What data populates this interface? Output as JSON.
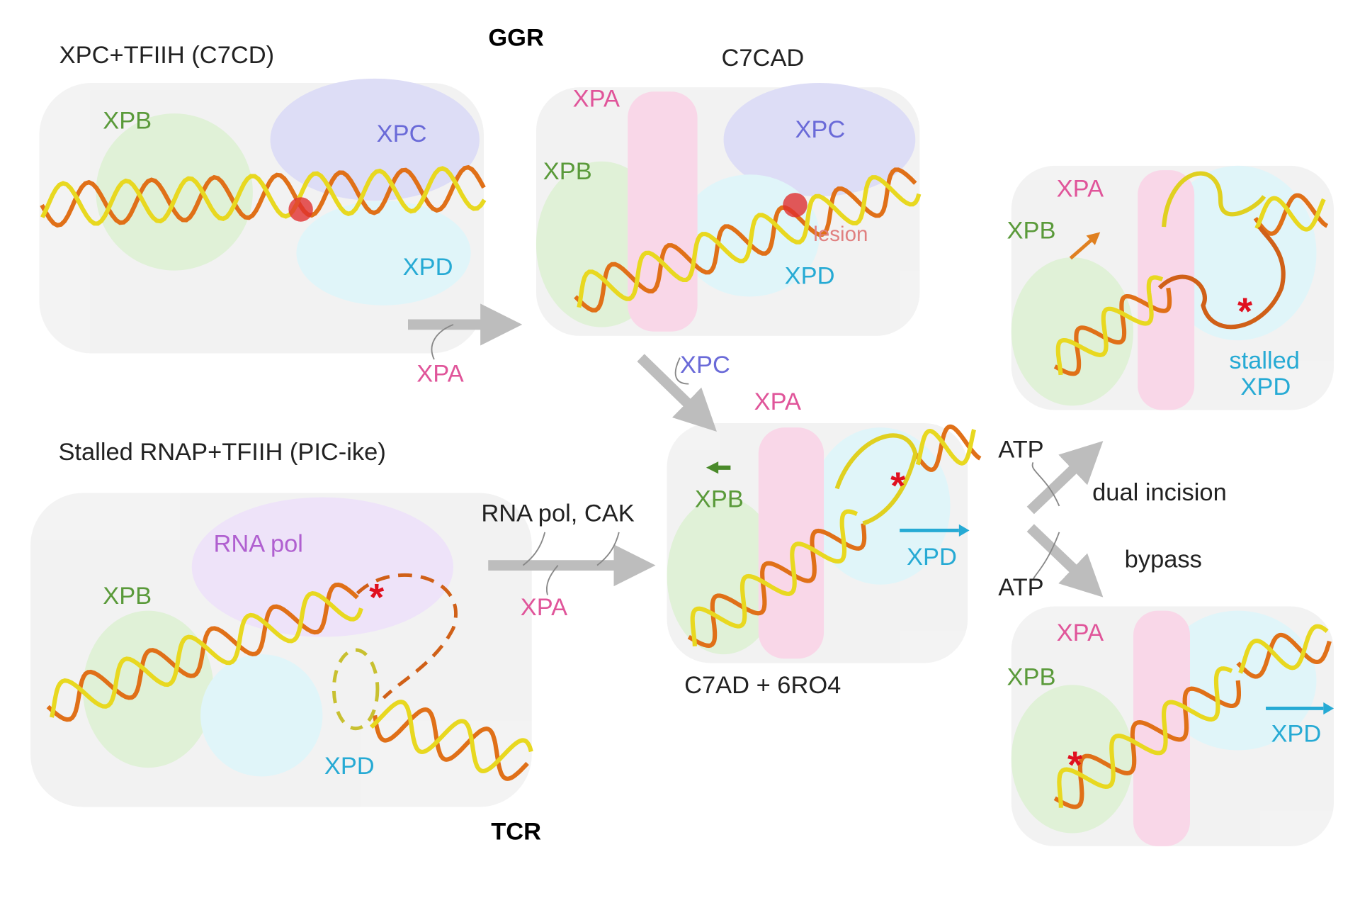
{
  "headings": {
    "ggr": "GGR",
    "tcr": "TCR"
  },
  "panels": {
    "c7cd": {
      "title": "XPC+TFIIH (C7CD)",
      "labels": [
        "XPB",
        "XPC",
        "XPD"
      ]
    },
    "c7cad": {
      "title": "C7CAD",
      "labels": [
        "XPA",
        "XPC",
        "XPB",
        "lesion",
        "XPD"
      ]
    },
    "pic": {
      "title": "Stalled RNAP+TFIIH (PIC-ike)",
      "labels": [
        "RNA pol",
        "XPB",
        "XPD"
      ]
    },
    "c7ad": {
      "title": "C7AD + 6RO4",
      "labels": [
        "XPA",
        "XPB",
        "XPD"
      ]
    },
    "incision": {
      "labels": [
        "XPA",
        "XPB",
        "stalled",
        "XPD"
      ]
    },
    "bypass": {
      "labels": [
        "XPA",
        "XPB",
        "XPD"
      ]
    }
  },
  "arrows": {
    "to_c7cad": {
      "label": "XPA"
    },
    "to_c7ad_from_ggr": {
      "label": "XPC"
    },
    "to_c7ad_from_tcr": {
      "labels": [
        "RNA pol, CAK",
        "XPA"
      ]
    },
    "incision": {
      "label": "ATP",
      "outcome": "dual incision"
    },
    "bypass": {
      "label": "ATP",
      "outcome": "bypass"
    }
  }
}
